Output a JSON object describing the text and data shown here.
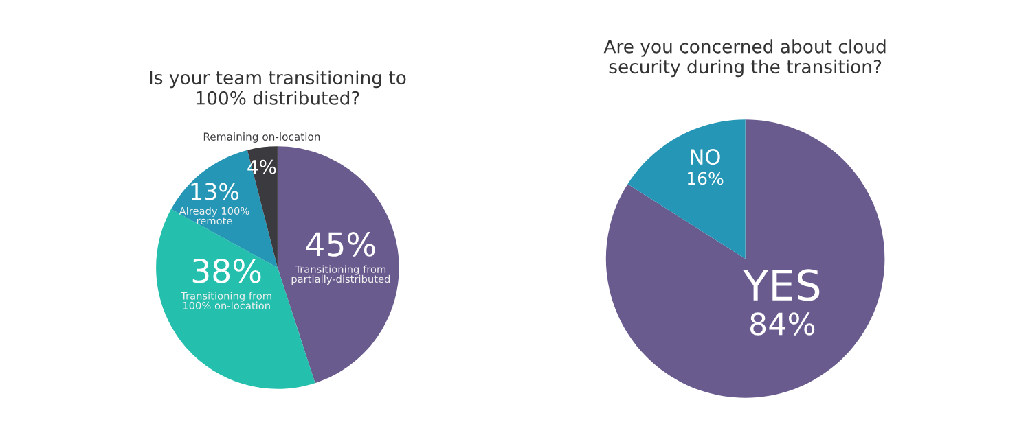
{
  "chart_data": [
    {
      "type": "pie",
      "title": "Is your team transitioning to\n100% distributed?",
      "categories": [
        "Transitioning from\npartially-distributed",
        "Transitioning from\n100% on-location",
        "Already 100%\nremote",
        "Remaining on-location"
      ],
      "values": [
        45,
        38,
        13,
        4
      ],
      "value_labels": [
        "45%",
        "38%",
        "13%",
        "4%"
      ],
      "colors": [
        "#6a5b8f",
        "#25bfad",
        "#2596b5",
        "#3b3b3f"
      ]
    },
    {
      "type": "pie",
      "title": "Are you concerned about cloud\nsecurity during the transition?",
      "categories": [
        "YES",
        "NO"
      ],
      "values": [
        84,
        16
      ],
      "value_labels": [
        "84%",
        "16%"
      ],
      "colors": [
        "#6a5b8f",
        "#2596b5"
      ]
    }
  ]
}
